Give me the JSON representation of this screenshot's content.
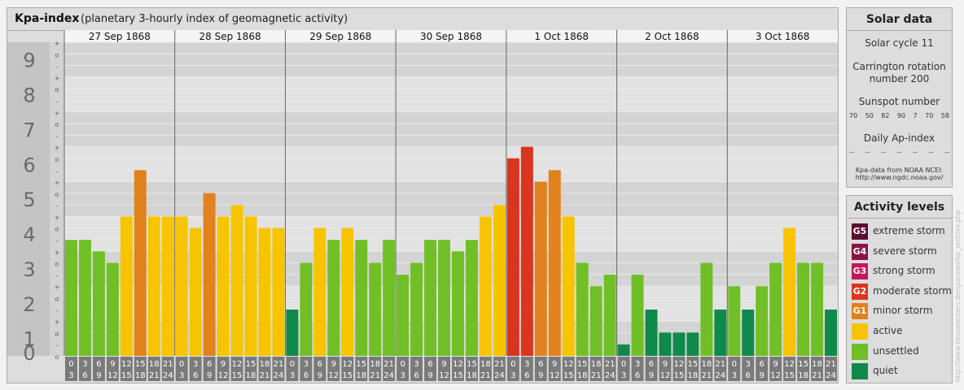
{
  "title": {
    "main": "Kpa-index",
    "sub": "(planetary 3-hourly index of geomagnetic activity)"
  },
  "colors": {
    "quiet": "#0f8a4a",
    "unsettled": "#71bf26",
    "active": "#f7c400",
    "minor_storm": "#e2821c",
    "moderate_storm": "#d9351f",
    "strong_storm": "#c2185b",
    "severe_storm": "#8a1446",
    "extreme_storm": "#5a0e30"
  },
  "chart_data": {
    "type": "bar",
    "title": "Kpa-index",
    "subtitle": "(planetary 3-hourly index of geomagnetic activity)",
    "ylim": [
      0,
      9
    ],
    "y_ticks": [
      "0",
      "1",
      "2",
      "3",
      "4",
      "5",
      "6",
      "7",
      "8",
      "9"
    ],
    "y_minor_ticks": [
      "+",
      "o",
      "-"
    ],
    "days": [
      "27 Sep 1868",
      "28 Sep 1868",
      "29 Sep 1868",
      "30 Sep 1868",
      "1 Oct 1868",
      "2 Oct 1868",
      "3 Oct 1868"
    ],
    "hour_ticks_top": [
      "0",
      "3",
      "6",
      "9",
      "12",
      "15",
      "18",
      "21"
    ],
    "hour_ticks_bottom": [
      "3",
      "6",
      "9",
      "12",
      "15",
      "18",
      "21",
      "24"
    ],
    "values": [
      [
        3.33,
        3.33,
        3.0,
        2.67,
        4.0,
        5.33,
        4.0,
        4.0
      ],
      [
        4.0,
        3.67,
        4.67,
        4.0,
        4.33,
        4.0,
        3.67,
        3.67
      ],
      [
        1.33,
        2.67,
        3.67,
        3.33,
        3.67,
        3.33,
        2.67,
        3.33
      ],
      [
        2.33,
        2.67,
        3.33,
        3.33,
        3.0,
        3.33,
        4.0,
        4.33
      ],
      [
        5.67,
        6.0,
        5.0,
        5.33,
        4.0,
        2.67,
        2.0,
        2.33
      ],
      [
        0.33,
        2.33,
        1.33,
        0.67,
        0.67,
        0.67,
        2.67,
        1.33
      ],
      [
        2.0,
        1.33,
        2.0,
        2.67,
        3.67,
        2.67,
        2.67,
        1.33
      ]
    ],
    "grid": true
  },
  "solar": {
    "heading": "Solar data",
    "cycle": "Solar cycle 11",
    "carrington_1": "Carrington rotation",
    "carrington_2": "number 200",
    "sunspot_label": "Sunspot number",
    "sunspot_values": [
      "70",
      "50",
      "82",
      "90",
      "7",
      "70",
      "58"
    ],
    "ap_label": "Daily Ap-index",
    "ap_values": [
      "--",
      "--",
      "--",
      "--",
      "--",
      "--",
      "--"
    ],
    "source_1": "Kpa-data from NOAA NCEI:",
    "source_2": "http://www.ngdc.noaa.gov/"
  },
  "activity": {
    "heading": "Activity levels",
    "items": [
      {
        "code": "G5",
        "label": "extreme storm",
        "color": "#5a0e30"
      },
      {
        "code": "G4",
        "label": "severe storm",
        "color": "#8a1446"
      },
      {
        "code": "G3",
        "label": "strong storm",
        "color": "#c2185b"
      },
      {
        "code": "G2",
        "label": "moderate storm",
        "color": "#d9351f"
      },
      {
        "code": "G1",
        "label": "minor storm",
        "color": "#e2821c"
      },
      {
        "code": "",
        "label": "active",
        "color": "#f7c400"
      },
      {
        "code": "",
        "label": "unsettled",
        "color": "#71bf26"
      },
      {
        "code": "",
        "label": "quiet",
        "color": "#0f8a4a"
      }
    ]
  },
  "watermark": "http://www.tieuseleuters.de/spacewx/kp_archive.php"
}
